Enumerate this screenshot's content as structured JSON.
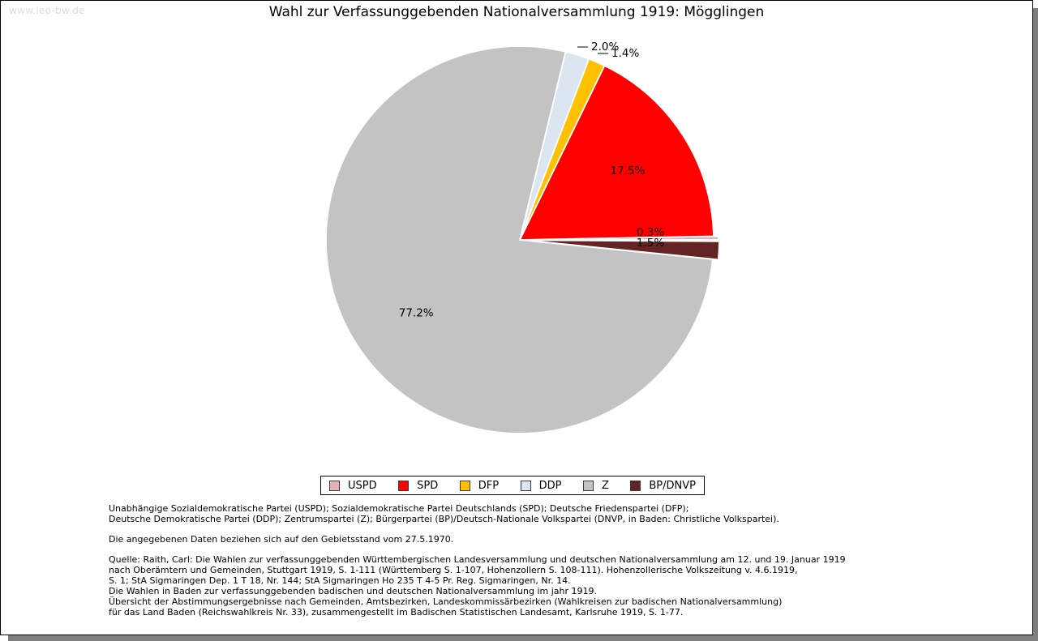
{
  "watermark": "www.leo-bw.de",
  "title": "Wahl zur Verfassunggebenden Nationalversammlung 1919: Mögglingen",
  "chart_data": {
    "type": "pie",
    "title": "Wahl zur Verfassunggebenden Nationalversammlung 1919: Mögglingen",
    "unit": "percent",
    "start_angle_deg": 0,
    "direction": "counterclockwise",
    "legend_position": "bottom",
    "slices": [
      {
        "label": "USPD",
        "value": 0.3,
        "pct_label": "0.3%",
        "color": "#e4b3ba",
        "explode": 6,
        "label_placement": "abs"
      },
      {
        "label": "SPD",
        "value": 17.5,
        "pct_label": "17.5%",
        "color": "#fe0000",
        "explode": 0,
        "label_placement": "radial"
      },
      {
        "label": "DFP",
        "value": 1.4,
        "pct_label": "1.4%",
        "color": "#ffc000",
        "explode": 0,
        "label_placement": "callout"
      },
      {
        "label": "DDP",
        "value": 2.0,
        "pct_label": "2.0%",
        "color": "#dce6f2",
        "explode": 0,
        "label_placement": "callout"
      },
      {
        "label": "Z",
        "value": 77.2,
        "pct_label": "77.2%",
        "color": "#c3c3c3",
        "explode": 0,
        "label_placement": "radial"
      },
      {
        "label": "BP/DNVP",
        "value": 1.5,
        "pct_label": "1.5%",
        "color": "#632423",
        "explode": 7,
        "label_placement": "abs"
      }
    ]
  },
  "footnotes": {
    "parties_line1": "Unabhängige Sozialdemokratische Partei (USPD); Sozialdemokratische Partei Deutschlands (SPD); Deutsche Friedenspartei (DFP);",
    "parties_line2": "Deutsche Demokratische Partei (DDP); Zentrumspartei (Z); Bürgerpartei (BP)/Deutsch-Nationale Volkspartei (DNVP, in Baden: Christliche Volkspartei).",
    "gebietsstand": "Die angegebenen Daten beziehen sich auf den Gebietsstand vom 27.5.1970.",
    "quelle_lines": [
      "Quelle: Raith, Carl: Die Wahlen zur verfassunggebenden Württembergischen Landesversammlung und deutschen Nationalversammlung am 12. und 19. Januar 1919",
      "nach Oberämtern und Gemeinden, Stuttgart 1919, S. 1-111 (Württemberg S. 1-107, Hohenzollern S. 108-111). Hohenzollerische Volkszeitung v. 4.6.1919,",
      "S. 1; StA Sigmaringen Dep. 1 T 18, Nr. 144; StA Sigmaringen Ho 235 T 4-5 Pr. Reg. Sigmaringen, Nr. 14.",
      "Die Wahlen in Baden zur verfassunggebenden badischen und deutschen Nationalversammlung im jahr 1919.",
      "Übersicht der Abstimmungsergebnisse nach Gemeinden, Amtsbezirken, Landeskommissärbezirken (Wahlkreisen zur badischen Nationalversammlung)",
      "für das Land Baden (Reichswahlkreis Nr. 33), zusammengestellt im Badischen Statistischen Landesamt, Karlsruhe 1919, S. 1-77."
    ]
  }
}
